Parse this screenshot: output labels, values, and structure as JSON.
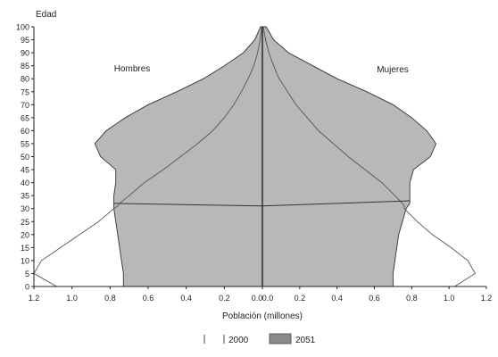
{
  "chart_data": {
    "type": "area",
    "subtype": "population-pyramid",
    "ylabel": "Edad",
    "xlabel": "Población (millones)",
    "left_label": "Hombres",
    "right_label": "Mujeres",
    "x_ticks_left": [
      "1.2",
      "1.0",
      "0.8",
      "0.6",
      "0.4",
      "0.2",
      "0.0"
    ],
    "x_ticks_right": [
      "0.0",
      "0.2",
      "0.4",
      "0.6",
      "0.8",
      "1.0",
      "1.2"
    ],
    "xlim": [
      0,
      1.2
    ],
    "ylim": [
      0,
      100
    ],
    "y_ticks": [
      0,
      5,
      10,
      15,
      20,
      25,
      30,
      35,
      40,
      45,
      50,
      55,
      60,
      65,
      70,
      75,
      80,
      85,
      90,
      95,
      100
    ],
    "age": [
      0,
      5,
      10,
      15,
      20,
      25,
      30,
      31,
      32,
      35,
      40,
      45,
      50,
      55,
      60,
      65,
      70,
      75,
      80,
      85,
      90,
      95,
      100
    ],
    "series": [
      {
        "name": "2000",
        "style": "line",
        "color": "#555555",
        "men": [
          1.08,
          1.2,
          1.16,
          1.06,
          0.96,
          0.86,
          0.78,
          0.76,
          0.75,
          0.7,
          0.62,
          0.52,
          0.43,
          0.34,
          0.26,
          0.2,
          0.15,
          0.11,
          0.075,
          0.045,
          0.025,
          0.012,
          0.003
        ],
        "women": [
          1.03,
          1.14,
          1.1,
          1.01,
          0.91,
          0.83,
          0.76,
          0.76,
          0.75,
          0.71,
          0.64,
          0.55,
          0.46,
          0.38,
          0.3,
          0.24,
          0.18,
          0.135,
          0.09,
          0.06,
          0.035,
          0.017,
          0.005
        ]
      },
      {
        "name": "2051",
        "style": "fill",
        "color": "#b8b8b8",
        "men": [
          0.73,
          0.73,
          0.74,
          0.75,
          0.76,
          0.77,
          0.78,
          0.78,
          0.78,
          0.78,
          0.77,
          0.77,
          0.85,
          0.88,
          0.82,
          0.72,
          0.6,
          0.45,
          0.31,
          0.2,
          0.1,
          0.04,
          0.01
        ],
        "women": [
          0.7,
          0.7,
          0.71,
          0.72,
          0.73,
          0.75,
          0.77,
          0.78,
          0.79,
          0.79,
          0.79,
          0.81,
          0.9,
          0.93,
          0.88,
          0.8,
          0.7,
          0.56,
          0.4,
          0.27,
          0.14,
          0.06,
          0.02
        ]
      }
    ],
    "legend": {
      "placement": "bottom-center",
      "items": [
        {
          "label": "2000",
          "style": "outline"
        },
        {
          "label": "2051",
          "style": "fill"
        }
      ]
    },
    "colors": {
      "fill_2051": "#b8b8b8",
      "line": "#555555",
      "axis": "#222222"
    }
  }
}
